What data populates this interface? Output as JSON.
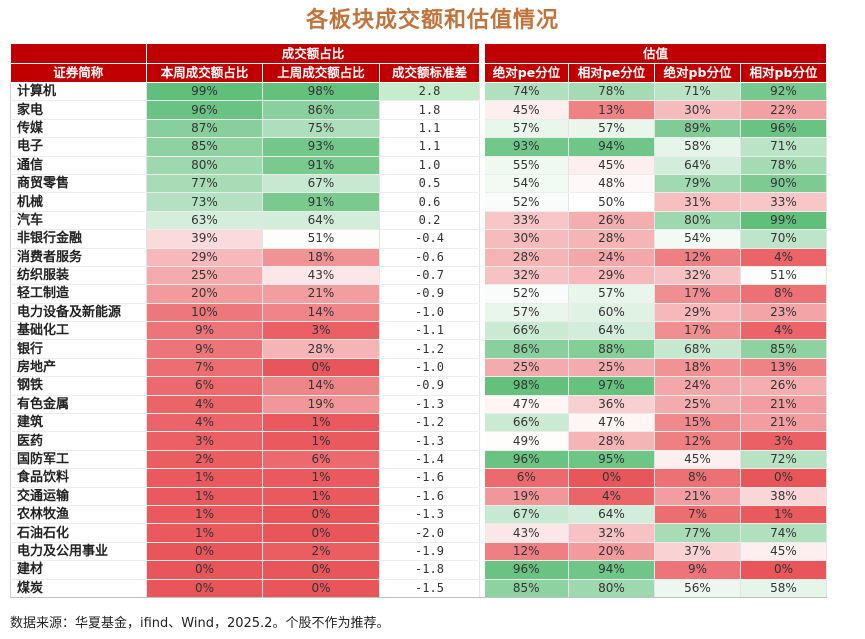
{
  "title": "各板块成交额和估值情况",
  "headers": {
    "group_turnover": "成交额占比",
    "group_valuation": "估值",
    "columns": [
      "证券简称",
      "本周成交额占比",
      "上周成交额占比",
      "成交额标准差",
      "绝对pe分位",
      "相对pe分位",
      "绝对pb分位",
      "相对pb分位"
    ]
  },
  "rows": [
    {
      "name": "计算机",
      "this_week": "99%",
      "last_week": "98%",
      "std": "2.8",
      "abs_pe": "74%",
      "rel_pe": "78%",
      "abs_pb": "71%",
      "rel_pb": "92%"
    },
    {
      "name": "家电",
      "this_week": "96%",
      "last_week": "86%",
      "std": "1.8",
      "abs_pe": "45%",
      "rel_pe": "13%",
      "abs_pb": "30%",
      "rel_pb": "22%"
    },
    {
      "name": "传媒",
      "this_week": "87%",
      "last_week": "75%",
      "std": "1.1",
      "abs_pe": "57%",
      "rel_pe": "57%",
      "abs_pb": "89%",
      "rel_pb": "96%"
    },
    {
      "name": "电子",
      "this_week": "85%",
      "last_week": "93%",
      "std": "1.1",
      "abs_pe": "93%",
      "rel_pe": "94%",
      "abs_pb": "58%",
      "rel_pb": "71%"
    },
    {
      "name": "通信",
      "this_week": "80%",
      "last_week": "91%",
      "std": "1.0",
      "abs_pe": "55%",
      "rel_pe": "45%",
      "abs_pb": "64%",
      "rel_pb": "78%"
    },
    {
      "name": "商贸零售",
      "this_week": "77%",
      "last_week": "67%",
      "std": "0.5",
      "abs_pe": "54%",
      "rel_pe": "48%",
      "abs_pb": "79%",
      "rel_pb": "90%"
    },
    {
      "name": "机械",
      "this_week": "73%",
      "last_week": "91%",
      "std": "0.6",
      "abs_pe": "52%",
      "rel_pe": "50%",
      "abs_pb": "31%",
      "rel_pb": "33%"
    },
    {
      "name": "汽车",
      "this_week": "63%",
      "last_week": "64%",
      "std": "0.2",
      "abs_pe": "33%",
      "rel_pe": "26%",
      "abs_pb": "80%",
      "rel_pb": "99%"
    },
    {
      "name": "非银行金融",
      "this_week": "39%",
      "last_week": "51%",
      "std": "-0.4",
      "abs_pe": "30%",
      "rel_pe": "28%",
      "abs_pb": "54%",
      "rel_pb": "70%"
    },
    {
      "name": "消费者服务",
      "this_week": "29%",
      "last_week": "18%",
      "std": "-0.6",
      "abs_pe": "28%",
      "rel_pe": "24%",
      "abs_pb": "12%",
      "rel_pb": "4%"
    },
    {
      "name": "纺织服装",
      "this_week": "25%",
      "last_week": "43%",
      "std": "-0.7",
      "abs_pe": "32%",
      "rel_pe": "29%",
      "abs_pb": "32%",
      "rel_pb": "51%"
    },
    {
      "name": "轻工制造",
      "this_week": "20%",
      "last_week": "21%",
      "std": "-0.9",
      "abs_pe": "52%",
      "rel_pe": "57%",
      "abs_pb": "17%",
      "rel_pb": "8%"
    },
    {
      "name": "电力设备及新能源",
      "this_week": "10%",
      "last_week": "14%",
      "std": "-1.0",
      "abs_pe": "57%",
      "rel_pe": "60%",
      "abs_pb": "29%",
      "rel_pb": "23%"
    },
    {
      "name": "基础化工",
      "this_week": "9%",
      "last_week": "3%",
      "std": "-1.1",
      "abs_pe": "66%",
      "rel_pe": "64%",
      "abs_pb": "17%",
      "rel_pb": "4%"
    },
    {
      "name": "银行",
      "this_week": "9%",
      "last_week": "28%",
      "std": "-1.2",
      "abs_pe": "86%",
      "rel_pe": "88%",
      "abs_pb": "68%",
      "rel_pb": "85%"
    },
    {
      "name": "房地产",
      "this_week": "7%",
      "last_week": "0%",
      "std": "-1.0",
      "abs_pe": "25%",
      "rel_pe": "25%",
      "abs_pb": "18%",
      "rel_pb": "13%"
    },
    {
      "name": "钢铁",
      "this_week": "6%",
      "last_week": "14%",
      "std": "-0.9",
      "abs_pe": "98%",
      "rel_pe": "97%",
      "abs_pb": "24%",
      "rel_pb": "26%"
    },
    {
      "name": "有色金属",
      "this_week": "4%",
      "last_week": "19%",
      "std": "-1.3",
      "abs_pe": "47%",
      "rel_pe": "36%",
      "abs_pb": "25%",
      "rel_pb": "21%"
    },
    {
      "name": "建筑",
      "this_week": "4%",
      "last_week": "1%",
      "std": "-1.2",
      "abs_pe": "66%",
      "rel_pe": "47%",
      "abs_pb": "15%",
      "rel_pb": "21%"
    },
    {
      "name": "医药",
      "this_week": "3%",
      "last_week": "1%",
      "std": "-1.3",
      "abs_pe": "49%",
      "rel_pe": "28%",
      "abs_pb": "12%",
      "rel_pb": "3%"
    },
    {
      "name": "国防军工",
      "this_week": "2%",
      "last_week": "6%",
      "std": "-1.4",
      "abs_pe": "96%",
      "rel_pe": "95%",
      "abs_pb": "45%",
      "rel_pb": "72%"
    },
    {
      "name": "食品饮料",
      "this_week": "1%",
      "last_week": "1%",
      "std": "-1.6",
      "abs_pe": "6%",
      "rel_pe": "0%",
      "abs_pb": "8%",
      "rel_pb": "0%"
    },
    {
      "name": "交通运输",
      "this_week": "1%",
      "last_week": "1%",
      "std": "-1.6",
      "abs_pe": "19%",
      "rel_pe": "4%",
      "abs_pb": "21%",
      "rel_pb": "38%"
    },
    {
      "name": "农林牧渔",
      "this_week": "1%",
      "last_week": "0%",
      "std": "-1.3",
      "abs_pe": "67%",
      "rel_pe": "64%",
      "abs_pb": "7%",
      "rel_pb": "1%"
    },
    {
      "name": "石油石化",
      "this_week": "1%",
      "last_week": "0%",
      "std": "-2.0",
      "abs_pe": "43%",
      "rel_pe": "32%",
      "abs_pb": "77%",
      "rel_pb": "74%"
    },
    {
      "name": "电力及公用事业",
      "this_week": "0%",
      "last_week": "2%",
      "std": "-1.9",
      "abs_pe": "12%",
      "rel_pe": "20%",
      "abs_pb": "37%",
      "rel_pb": "45%"
    },
    {
      "name": "建材",
      "this_week": "0%",
      "last_week": "0%",
      "std": "-1.8",
      "abs_pe": "96%",
      "rel_pe": "94%",
      "abs_pb": "9%",
      "rel_pb": "0%"
    },
    {
      "name": "煤炭",
      "this_week": "0%",
      "last_week": "0%",
      "std": "-1.5",
      "abs_pe": "85%",
      "rel_pe": "80%",
      "abs_pb": "56%",
      "rel_pb": "58%"
    }
  ],
  "heat_colors": {
    "high": "#5dbe78",
    "mid": "#ffffff",
    "low": "#e9565a",
    "header_red": "#c00000",
    "title": "#c0743c"
  },
  "source_note": "数据来源：华夏基金，ifind、Wind，2025.2。个股不作为推荐。"
}
